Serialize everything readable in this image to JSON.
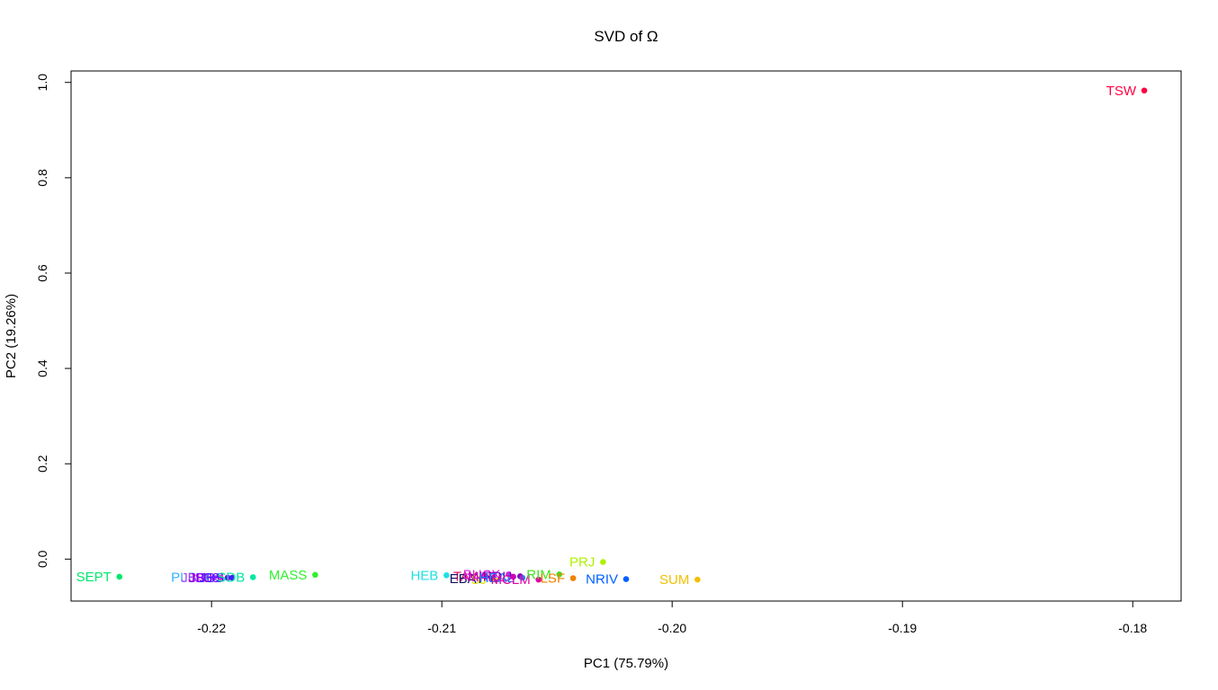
{
  "chart_data": {
    "type": "scatter",
    "title": "SVD of Ω",
    "xlabel": "PC1 (75.79%)",
    "ylabel": "PC2 (19.26%)",
    "xlim": [
      -0.2261,
      -0.1779
    ],
    "ylim": [
      -0.088,
      1.024
    ],
    "xticks": [
      -0.22,
      -0.21,
      -0.2,
      -0.19,
      -0.18
    ],
    "xtick_labels": [
      "-0.22",
      "-0.21",
      "-0.20",
      "-0.19",
      "-0.18"
    ],
    "yticks": [
      0.0,
      0.2,
      0.4,
      0.6,
      0.8,
      1.0
    ],
    "ytick_labels": [
      "0.0",
      "0.2",
      "0.4",
      "0.6",
      "0.8",
      "1.0"
    ],
    "grid": false,
    "points": [
      {
        "label": "TSW",
        "x": -0.1795,
        "y": 0.983,
        "color": "#ff0040"
      },
      {
        "label": "SEPT",
        "x": -0.224,
        "y": -0.037,
        "color": "#00e86a"
      },
      {
        "label": "PLB",
        "x": -0.2203,
        "y": -0.038,
        "color": "#33b0ff"
      },
      {
        "label": "JBB",
        "x": -0.2199,
        "y": -0.039,
        "color": "#b040ff"
      },
      {
        "label": "JSB",
        "x": -0.2196,
        "y": -0.039,
        "color": "#e040c0"
      },
      {
        "label": "JB38",
        "x": -0.2193,
        "y": -0.039,
        "color": "#7a00ff"
      },
      {
        "label": "JBS",
        "x": -0.2191,
        "y": -0.039,
        "color": "#4020ff"
      },
      {
        "label": "SDB",
        "x": -0.2182,
        "y": -0.038,
        "color": "#00e8a0"
      },
      {
        "label": "MASS",
        "x": -0.2155,
        "y": -0.033,
        "color": "#30f030"
      },
      {
        "label": "HEB",
        "x": -0.2098,
        "y": -0.034,
        "color": "#20e0e0"
      },
      {
        "label": "TAY",
        "x": -0.2081,
        "y": -0.036,
        "color": "#e00060"
      },
      {
        "label": "EBAY",
        "x": -0.2078,
        "y": -0.041,
        "color": "#101060"
      },
      {
        "label": "SJ",
        "x": -0.2077,
        "y": -0.043,
        "color": "#e0e000"
      },
      {
        "label": "BUCK",
        "x": -0.2071,
        "y": -0.032,
        "color": "#e020e0"
      },
      {
        "label": "MARL",
        "x": -0.2069,
        "y": -0.037,
        "color": "#c000c0"
      },
      {
        "label": "IRDU",
        "x": -0.2066,
        "y": -0.036,
        "color": "#8000c0"
      },
      {
        "label": "HEAL",
        "x": -0.2065,
        "y": -0.039,
        "color": "#2080ff"
      },
      {
        "label": "MCLM",
        "x": -0.2058,
        "y": -0.043,
        "color": "#e000a0"
      },
      {
        "label": "RIM",
        "x": -0.2049,
        "y": -0.032,
        "color": "#40e020"
      },
      {
        "label": "LSF",
        "x": -0.2043,
        "y": -0.04,
        "color": "#f08000"
      },
      {
        "label": "PRJ",
        "x": -0.203,
        "y": -0.006,
        "color": "#b0f000"
      },
      {
        "label": "NRIV",
        "x": -0.202,
        "y": -0.042,
        "color": "#0060ff"
      },
      {
        "label": "SUM",
        "x": -0.1989,
        "y": -0.043,
        "color": "#f0c000"
      }
    ]
  }
}
